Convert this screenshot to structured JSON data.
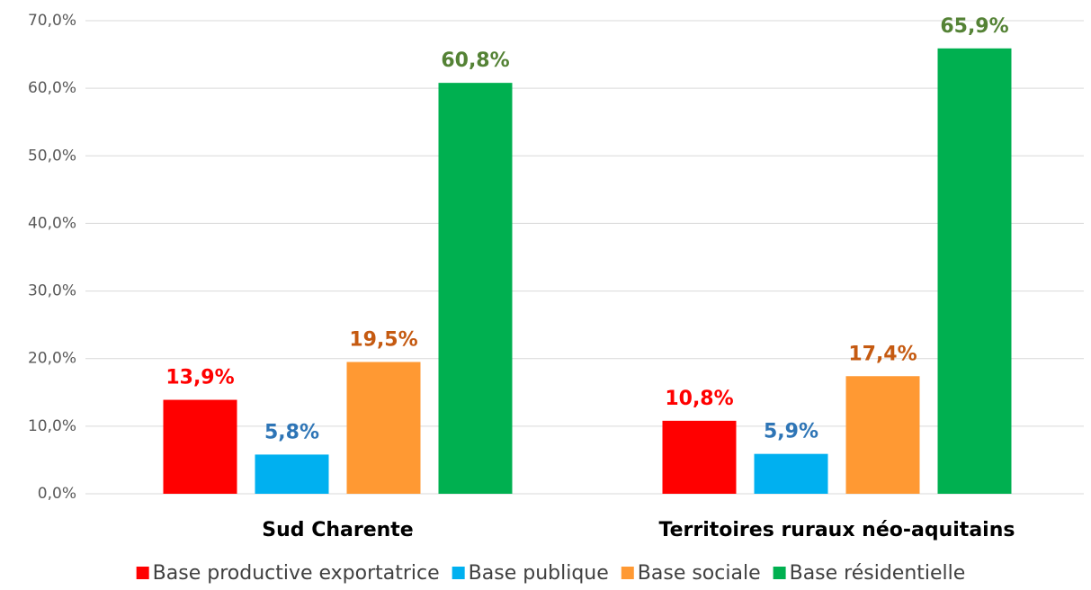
{
  "chart_data": {
    "type": "bar",
    "categories": [
      "Sud Charente",
      "Territoires ruraux néo-aquitains"
    ],
    "series": [
      {
        "name": "Base productive exportatrice",
        "color": "#ff0000",
        "label_color": "#ff0000",
        "values": [
          13.9,
          10.8
        ],
        "value_labels": [
          "13,9%",
          "10,8%"
        ]
      },
      {
        "name": "Base publique",
        "color": "#00b0f0",
        "label_color": "#2e75b6",
        "values": [
          5.8,
          5.9
        ],
        "value_labels": [
          "5,8%",
          "5,9%"
        ]
      },
      {
        "name": "Base sociale",
        "color": "#ff9933",
        "label_color": "#c55a11",
        "values": [
          19.5,
          17.4
        ],
        "value_labels": [
          "19,5%",
          "17,4%"
        ]
      },
      {
        "name": "Base résidentielle",
        "color": "#00b050",
        "label_color": "#548235",
        "values": [
          60.8,
          65.9
        ],
        "value_labels": [
          "60,8%",
          "65,9%"
        ]
      }
    ],
    "ylim": [
      0,
      70
    ],
    "yticks": [
      {
        "value": 0,
        "label": "0,0%"
      },
      {
        "value": 10,
        "label": "10,0%"
      },
      {
        "value": 20,
        "label": "20,0%"
      },
      {
        "value": 30,
        "label": "30,0%"
      },
      {
        "value": 40,
        "label": "40,0%"
      },
      {
        "value": 50,
        "label": "50,0%"
      },
      {
        "value": 60,
        "label": "60,0%"
      },
      {
        "value": 70,
        "label": "70,0%"
      }
    ],
    "grid": true,
    "legend": "bottom"
  }
}
